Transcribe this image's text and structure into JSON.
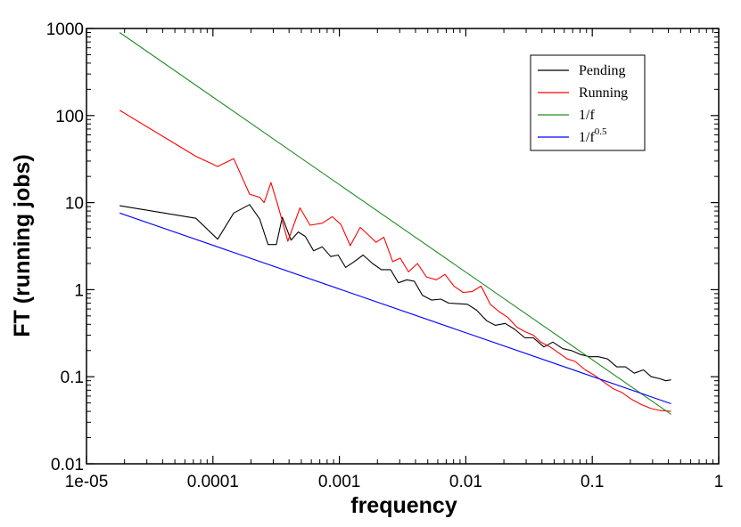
{
  "chart_data": {
    "type": "line",
    "xlabel": "frequency",
    "ylabel": "FT (running jobs)",
    "x_scale": "log",
    "y_scale": "log",
    "xlim": [
      1e-05,
      1
    ],
    "ylim": [
      0.01,
      1000
    ],
    "x_ticks": [
      {
        "value": 1e-05,
        "label": "1e-05"
      },
      {
        "value": 0.0001,
        "label": "0.0001"
      },
      {
        "value": 0.001,
        "label": "0.001"
      },
      {
        "value": 0.01,
        "label": "0.01"
      },
      {
        "value": 0.1,
        "label": "0.1"
      },
      {
        "value": 1,
        "label": "1"
      }
    ],
    "y_ticks": [
      {
        "value": 0.01,
        "label": "0.01"
      },
      {
        "value": 0.1,
        "label": "0.1"
      },
      {
        "value": 1,
        "label": "1"
      },
      {
        "value": 10,
        "label": "10"
      },
      {
        "value": 100,
        "label": "100"
      },
      {
        "value": 1000,
        "label": "1000"
      }
    ],
    "grid": false,
    "legend_position": "top-right",
    "series": [
      {
        "name": "Pending",
        "color": "#000000",
        "points": [
          [
            1.83e-05,
            9.2
          ],
          [
            7.33e-05,
            6.6
          ],
          [
            0.000109,
            3.8
          ],
          [
            0.000146,
            7.6
          ],
          [
            0.000195,
            9.5
          ],
          [
            0.000234,
            6.5
          ],
          [
            0.000273,
            3.3
          ],
          [
            0.000317,
            3.3
          ],
          [
            0.000354,
            6.8
          ],
          [
            0.000415,
            3.7
          ],
          [
            0.000473,
            4.6
          ],
          [
            0.000537,
            4.1
          ],
          [
            0.000625,
            2.8
          ],
          [
            0.000732,
            3.1
          ],
          [
            0.000854,
            2.4
          ],
          [
            0.000977,
            2.5
          ],
          [
            0.00112,
            1.8
          ],
          [
            0.00131,
            2.1
          ],
          [
            0.00154,
            2.5
          ],
          [
            0.00183,
            2.0
          ],
          [
            0.00215,
            1.7
          ],
          [
            0.00254,
            1.7
          ],
          [
            0.00293,
            1.2
          ],
          [
            0.00342,
            1.3
          ],
          [
            0.00391,
            1.25
          ],
          [
            0.00454,
            0.86
          ],
          [
            0.00537,
            0.76
          ],
          [
            0.00635,
            0.78
          ],
          [
            0.00732,
            0.7
          ],
          [
            0.00879,
            0.69
          ],
          [
            0.0103,
            0.68
          ],
          [
            0.0122,
            0.58
          ],
          [
            0.0146,
            0.44
          ],
          [
            0.0171,
            0.39
          ],
          [
            0.0205,
            0.41
          ],
          [
            0.0244,
            0.35
          ],
          [
            0.0293,
            0.28
          ],
          [
            0.0342,
            0.28
          ],
          [
            0.0415,
            0.22
          ],
          [
            0.0488,
            0.25
          ],
          [
            0.0586,
            0.21
          ],
          [
            0.0684,
            0.2
          ],
          [
            0.0806,
            0.18
          ],
          [
            0.0952,
            0.17
          ],
          [
            0.112,
            0.17
          ],
          [
            0.132,
            0.16
          ],
          [
            0.156,
            0.13
          ],
          [
            0.183,
            0.13
          ],
          [
            0.215,
            0.11
          ],
          [
            0.254,
            0.12
          ],
          [
            0.293,
            0.1
          ],
          [
            0.342,
            0.095
          ],
          [
            0.381,
            0.09
          ],
          [
            0.42,
            0.092
          ]
        ]
      },
      {
        "name": "Running",
        "color": "#ff0000",
        "points": [
          [
            1.83e-05,
            115
          ],
          [
            7.33e-05,
            34
          ],
          [
            0.000109,
            26
          ],
          [
            0.000146,
            32
          ],
          [
            0.000195,
            12.5
          ],
          [
            0.000234,
            11.5
          ],
          [
            0.000254,
            10
          ],
          [
            0.000288,
            17
          ],
          [
            0.000325,
            9.5
          ],
          [
            0.000391,
            3.6
          ],
          [
            0.000488,
            8.7
          ],
          [
            0.000586,
            5.5
          ],
          [
            0.000732,
            5.8
          ],
          [
            0.000879,
            6.9
          ],
          [
            0.00103,
            5.6
          ],
          [
            0.00122,
            3.2
          ],
          [
            0.00146,
            5.2
          ],
          [
            0.00171,
            4.2
          ],
          [
            0.00195,
            3.5
          ],
          [
            0.00225,
            4.0
          ],
          [
            0.00264,
            2.1
          ],
          [
            0.00303,
            2.3
          ],
          [
            0.00352,
            1.6
          ],
          [
            0.00415,
            2.0
          ],
          [
            0.00488,
            1.4
          ],
          [
            0.00586,
            1.3
          ],
          [
            0.00684,
            1.5
          ],
          [
            0.00806,
            1.1
          ],
          [
            0.00952,
            0.93
          ],
          [
            0.0112,
            0.95
          ],
          [
            0.0132,
            1.1
          ],
          [
            0.0156,
            0.68
          ],
          [
            0.0183,
            0.56
          ],
          [
            0.0215,
            0.48
          ],
          [
            0.0254,
            0.37
          ],
          [
            0.0293,
            0.33
          ],
          [
            0.0342,
            0.3
          ],
          [
            0.0391,
            0.25
          ],
          [
            0.0464,
            0.22
          ],
          [
            0.0537,
            0.19
          ],
          [
            0.0635,
            0.16
          ],
          [
            0.0732,
            0.15
          ],
          [
            0.0879,
            0.12
          ],
          [
            0.103,
            0.105
          ],
          [
            0.122,
            0.088
          ],
          [
            0.146,
            0.073
          ],
          [
            0.171,
            0.066
          ],
          [
            0.205,
            0.055
          ],
          [
            0.244,
            0.048
          ],
          [
            0.293,
            0.043
          ],
          [
            0.342,
            0.041
          ],
          [
            0.42,
            0.04
          ]
        ]
      },
      {
        "name": "1/f",
        "color": "#228b22",
        "points": [
          [
            1.83e-05,
            900
          ],
          [
            0.42,
            0.037
          ]
        ]
      },
      {
        "name": "1/f",
        "name_superscript": "0.5",
        "color": "#0000ff",
        "points": [
          [
            1.83e-05,
            7.6
          ],
          [
            0.42,
            0.049
          ]
        ]
      }
    ]
  }
}
